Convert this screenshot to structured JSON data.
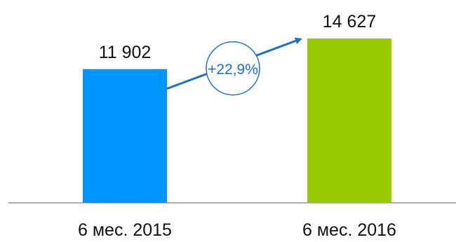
{
  "chart_data": {
    "type": "bar",
    "categories": [
      "6 мес. 2015",
      "6 мес. 2016"
    ],
    "values": [
      11902,
      14627
    ],
    "value_labels": [
      "11 902",
      "14 627"
    ],
    "bar_colors": [
      "#0096ff",
      "#99cc00"
    ],
    "ylim": [
      0,
      14627
    ],
    "grid": false,
    "legend": "none",
    "annotation": {
      "text": "+22,9%",
      "color": "#1f6fbf"
    }
  }
}
